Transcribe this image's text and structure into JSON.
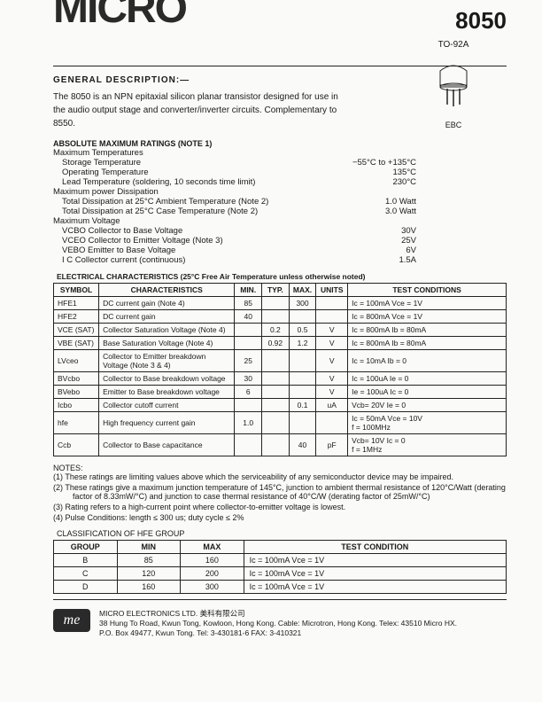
{
  "header": {
    "logo_text": "MICRO",
    "part_number": "8050"
  },
  "general": {
    "title": "GENERAL DESCRIPTION:—",
    "body": "The 8050 is an NPN epitaxial silicon planar transistor designed for use in the audio output stage and converter/inverter circuits. Complementary to 8550."
  },
  "package": {
    "name": "TO-92A",
    "pins": "EBC"
  },
  "ratings": {
    "title": "ABSOLUTE MAXIMUM RATINGS   (Note 1)",
    "groups": [
      {
        "heading": "Maximum Temperatures",
        "rows": [
          {
            "label": "Storage Temperature",
            "value": "−55°C to +135°C"
          },
          {
            "label": "Operating Temperature",
            "value": "135°C"
          },
          {
            "label": "Lead Temperature (soldering, 10 seconds time limit)",
            "value": "230°C"
          }
        ]
      },
      {
        "heading": "Maximum power Dissipation",
        "rows": [
          {
            "label": "Total Dissipation at 25°C Ambient Temperature (Note 2)",
            "value": "1.0 Watt"
          },
          {
            "label": "Total Dissipation at 25°C Case Temperature (Note 2)",
            "value": "3.0 Watt"
          }
        ]
      },
      {
        "heading": "Maximum Voltage",
        "rows": [
          {
            "label": "VCBO   Collector to Base Voltage",
            "value": "30V"
          },
          {
            "label": "VCEO   Collector to Emitter Voltage (Note 3)",
            "value": "25V"
          },
          {
            "label": "VEBO   Emitter to Base Voltage",
            "value": "6V"
          },
          {
            "label": "I C       Collector current (continuous)",
            "value": "1.5A"
          }
        ]
      }
    ]
  },
  "elec": {
    "title": "ELECTRICAL CHARACTERISTICS (25°C Free Air Temperature unless otherwise noted)",
    "columns": [
      "SYMBOL",
      "CHARACTERISTICS",
      "MIN.",
      "TYP.",
      "MAX.",
      "UNITS",
      "TEST CONDITIONS"
    ],
    "col_widths_pct": [
      10,
      30,
      6,
      6,
      6,
      7,
      35
    ],
    "rows": [
      {
        "sym": "HFE1",
        "char": "DC current gain (Note 4)",
        "min": "85",
        "typ": "",
        "max": "300",
        "unit": "",
        "cond": "Ic =   100mA   Vce   = 1V"
      },
      {
        "sym": "HFE2",
        "char": "DC current gain",
        "min": "40",
        "typ": "",
        "max": "",
        "unit": "",
        "cond": "Ic =   800mA   Vce   = 1V"
      },
      {
        "sym": "VCE (SAT)",
        "char": "Collector Saturation Voltage (Note 4)",
        "min": "",
        "typ": "0.2",
        "max": "0.5",
        "unit": "V",
        "cond": "Ic =   800mA   Ib    = 80mA"
      },
      {
        "sym": "VBE (SAT)",
        "char": "Base Saturation Voltage (Note 4)",
        "min": "",
        "typ": "0.92",
        "max": "1.2",
        "unit": "V",
        "cond": "Ic =   800mA   Ib    = 80mA"
      },
      {
        "sym": "LVceo",
        "char": "Collector to Emitter breakdown Voltage (Note 3 & 4)",
        "min": "25",
        "typ": "",
        "max": "",
        "unit": "V",
        "cond": "Ic =   10mA   Ib    = 0"
      },
      {
        "sym": "BVcbo",
        "char": "Collector to Base breakdown voltage",
        "min": "30",
        "typ": "",
        "max": "",
        "unit": "V",
        "cond": "Ic =   100uA   Ie    = 0"
      },
      {
        "sym": "BVebo",
        "char": "Emitter to Base breakdown voltage",
        "min": "6",
        "typ": "",
        "max": "",
        "unit": "V",
        "cond": "Ie =   100uA   Ic    = 0"
      },
      {
        "sym": "Icbo",
        "char": "Collector cutoff current",
        "min": "",
        "typ": "",
        "max": "0.1",
        "unit": "uA",
        "cond": "Vcb=  20V     Ie    = 0"
      },
      {
        "sym": "hfe",
        "char": "High frequency current gain",
        "min": "1.0",
        "typ": "",
        "max": "",
        "unit": "",
        "cond": "Ic =   50mA   Vce  = 10V\nf  =   100MHz"
      },
      {
        "sym": "Ccb",
        "char": "Collector to Base capacitance",
        "min": "",
        "typ": "",
        "max": "40",
        "unit": "pF",
        "cond": "Vcb=  10V    Ic    = 0\nf  = 1MHz"
      }
    ]
  },
  "notes": {
    "title": "NOTES:",
    "items": [
      "(1)   These ratings are limiting values above which the serviceability of any semiconductor device may be impaired.",
      "(2)   These ratings give a maximum junction temperature of 145°C, junction to ambient thermal resistance of 120°C/Watt (derating factor of 8.33mW/°C) and junction to case thermal resistance of 40°C/W (derating factor of 25mW/°C)",
      "(3)   Rating refers to a high-current point where collector-to-emitter voltage is lowest.",
      "(4)   Pulse Conditions:   length ≤ 300 us; duty cycle ≤ 2%"
    ]
  },
  "hfe_class": {
    "title": "CLASSIFICATION OF HFE GROUP",
    "columns": [
      "GROUP",
      "MIN",
      "MAX",
      "TEST CONDITION"
    ],
    "col_widths_pct": [
      14,
      14,
      14,
      58
    ],
    "rows": [
      {
        "g": "B",
        "min": "85",
        "max": "160",
        "cond": "Ic =   100mA      Vce  =  1V"
      },
      {
        "g": "C",
        "min": "120",
        "max": "200",
        "cond": "Ic =   100mA      Vce  =  1V"
      },
      {
        "g": "D",
        "min": "160",
        "max": "300",
        "cond": "Ic =   100mA      Vce  =  1V"
      }
    ]
  },
  "footer": {
    "logo": "me",
    "line1": "MICRO ELECTRONICS LTD. 美科有限公司",
    "line2": "38 Hung To Road, Kwun Tong, Kowloon, Hong Kong. Cable: Microtron, Hong Kong. Telex: 43510 Micro HX.",
    "line3": "P.O. Box 49477, Kwun Tong.  Tel: 3-430181-6  FAX: 3-410321"
  },
  "style": {
    "border_color": "#222222",
    "text_color": "#1a1a1a",
    "bg_color": "#fafaf8"
  }
}
